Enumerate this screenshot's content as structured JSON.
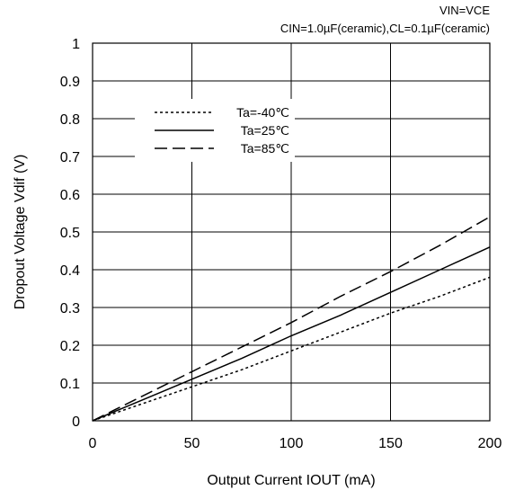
{
  "notes": [
    "VIN=VCE",
    "CIN=1.0µF(ceramic),CL=0.1µF(ceramic)"
  ],
  "chart_data": {
    "type": "line",
    "title": "",
    "xlabel": "Output Current IOUT (mA)",
    "ylabel": "Dropout Voltage Vdif (V)",
    "xlim": [
      0,
      200
    ],
    "ylim": [
      0,
      1
    ],
    "xticks": [
      "0",
      "50",
      "100",
      "150",
      "200"
    ],
    "yticks": [
      "0",
      "0.1",
      "0.2",
      "0.3",
      "0.4",
      "0.5",
      "0.6",
      "0.7",
      "0.8",
      "0.9",
      "1"
    ],
    "grid": true,
    "legend_position": "upper-left",
    "series": [
      {
        "name": "Ta=-40℃",
        "style": "dotted",
        "color": "#000000",
        "x": [
          0,
          25,
          50,
          75,
          100,
          125,
          150,
          175,
          200
        ],
        "y": [
          0,
          0.045,
          0.09,
          0.135,
          0.185,
          0.235,
          0.285,
          0.33,
          0.38
        ]
      },
      {
        "name": "Ta=25℃",
        "style": "solid",
        "color": "#000000",
        "x": [
          0,
          25,
          50,
          75,
          100,
          125,
          150,
          175,
          200
        ],
        "y": [
          0,
          0.055,
          0.11,
          0.165,
          0.225,
          0.28,
          0.34,
          0.4,
          0.46
        ]
      },
      {
        "name": "Ta=85℃",
        "style": "dashed",
        "color": "#000000",
        "x": [
          0,
          25,
          50,
          75,
          100,
          125,
          150,
          175,
          200
        ],
        "y": [
          0,
          0.065,
          0.13,
          0.195,
          0.26,
          0.33,
          0.395,
          0.465,
          0.54
        ]
      }
    ]
  }
}
